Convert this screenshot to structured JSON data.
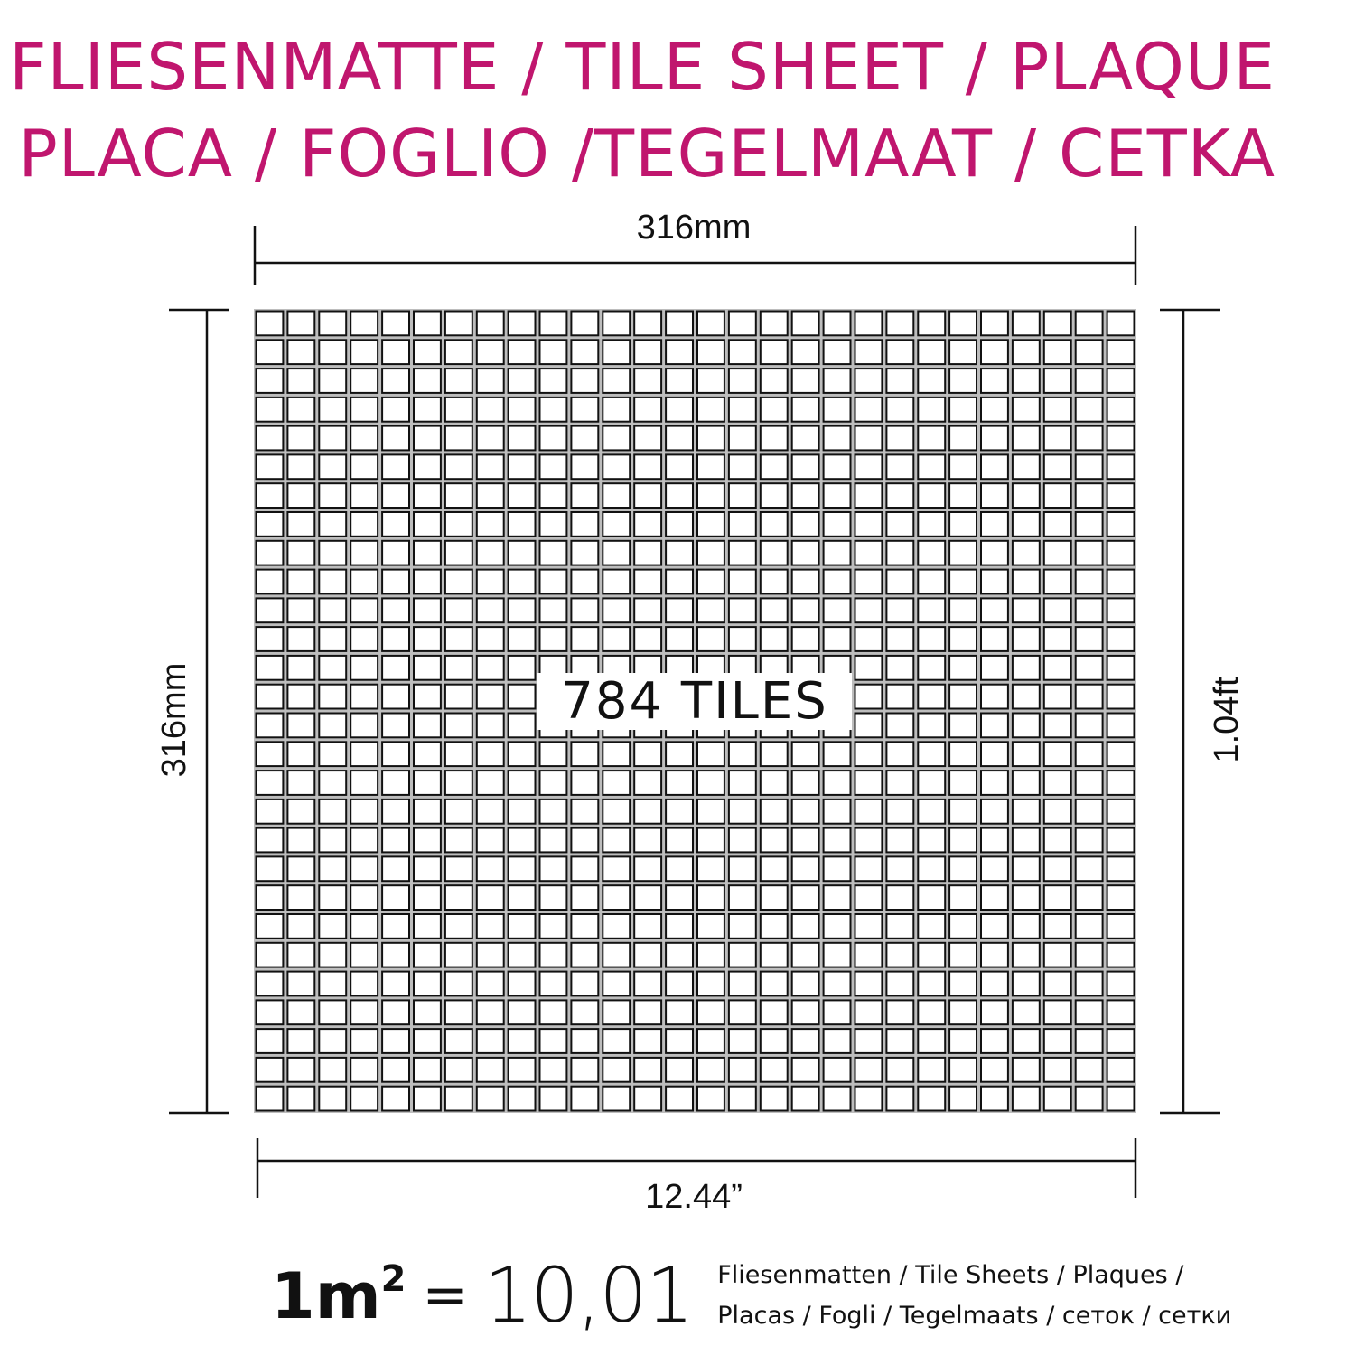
{
  "title": {
    "line1": "FLIESENMATTE / TILE SHEET / PLAQUE",
    "line2": "PLACA / FOGLIO /TEGELMAAT / CETKA",
    "color": "#c0166e"
  },
  "dimensions": {
    "top": "316mm",
    "left": "316mm",
    "right": "1.04ft",
    "bottom": "12.44”"
  },
  "grid": {
    "columns": 28,
    "rows": 28,
    "tile_outline_color": "#111111",
    "joint_color": "#bdbdbd"
  },
  "center_label": "784 TILES",
  "coverage": {
    "unit": "1m",
    "exponent": "2",
    "equals": "=",
    "value": "10,01",
    "units_line1": "Fliesenmatten / Tile Sheets /  Plaques /",
    "units_line2": "Placas / Fogli / Tegelmaats / сеток / сетки"
  }
}
